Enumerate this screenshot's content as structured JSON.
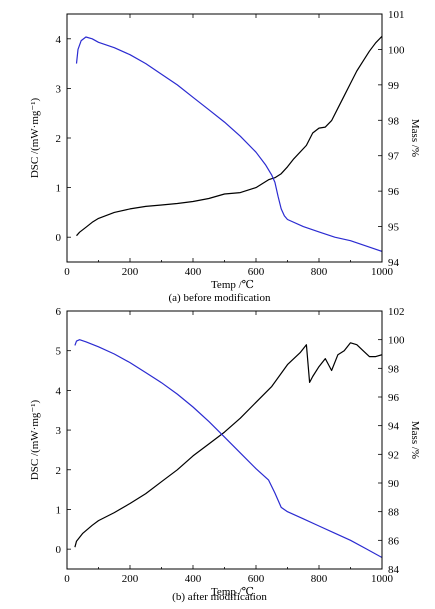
{
  "chart_data": [
    {
      "type": "line",
      "caption": "(a) before modification",
      "xlabel": "Temp /℃",
      "ylabel_left": "DSC /(mW·mg⁻¹)",
      "ylabel_right": "Mass /%",
      "xlim": [
        0,
        1000
      ],
      "ylim_left": [
        -0.5,
        4.5
      ],
      "ylim_right": [
        94,
        101
      ],
      "xticks": [
        "0",
        "200",
        "400",
        "600",
        "800",
        "1000"
      ],
      "yticks_left": [
        "0",
        "1",
        "2",
        "3",
        "4"
      ],
      "yticks_right": [
        "94",
        "95",
        "96",
        "97",
        "98",
        "99",
        "100",
        "101"
      ],
      "grid": false,
      "series": [
        {
          "axis": "left",
          "color": "#000000",
          "x": [
            30,
            40,
            60,
            80,
            100,
            150,
            200,
            250,
            300,
            350,
            400,
            450,
            500,
            550,
            600,
            640,
            660,
            680,
            700,
            720,
            760,
            780,
            800,
            820,
            840,
            860,
            880,
            900,
            920,
            940,
            960,
            980,
            1000
          ],
          "y": [
            0.03,
            0.1,
            0.2,
            0.3,
            0.38,
            0.5,
            0.57,
            0.62,
            0.65,
            0.68,
            0.72,
            0.78,
            0.87,
            0.9,
            1.0,
            1.16,
            1.2,
            1.28,
            1.42,
            1.58,
            1.85,
            2.1,
            2.2,
            2.22,
            2.35,
            2.6,
            2.85,
            3.1,
            3.35,
            3.55,
            3.75,
            3.92,
            4.05
          ]
        },
        {
          "axis": "right",
          "color": "#2b2bd1",
          "x": [
            30,
            35,
            45,
            60,
            80,
            100,
            150,
            200,
            250,
            300,
            350,
            400,
            450,
            500,
            550,
            600,
            630,
            650,
            660,
            670,
            680,
            690,
            700,
            750,
            800,
            850,
            900,
            950,
            1000
          ],
          "y": [
            99.6,
            100.0,
            100.25,
            100.35,
            100.3,
            100.2,
            100.05,
            99.85,
            99.6,
            99.3,
            99.0,
            98.65,
            98.3,
            97.95,
            97.55,
            97.1,
            96.75,
            96.45,
            96.25,
            95.85,
            95.5,
            95.3,
            95.2,
            95.0,
            94.85,
            94.7,
            94.6,
            94.45,
            94.3
          ]
        }
      ]
    },
    {
      "type": "line",
      "caption": "(b) after modification",
      "xlabel": "Temp /℃",
      "ylabel_left": "DSC /(mW·mg⁻¹)",
      "ylabel_right": "Mass /%",
      "xlim": [
        0,
        1000
      ],
      "ylim_left": [
        -0.5,
        6
      ],
      "ylim_right": [
        84,
        102
      ],
      "xticks": [
        "0",
        "200",
        "400",
        "600",
        "800",
        "1000"
      ],
      "yticks_left": [
        "0",
        "1",
        "2",
        "3",
        "4",
        "5",
        "6"
      ],
      "yticks_right": [
        "84",
        "86",
        "88",
        "90",
        "92",
        "94",
        "96",
        "98",
        "100",
        "102"
      ],
      "grid": false,
      "series": [
        {
          "axis": "left",
          "color": "#000000",
          "x": [
            25,
            30,
            50,
            80,
            100,
            150,
            200,
            250,
            300,
            350,
            400,
            450,
            500,
            550,
            600,
            650,
            700,
            740,
            760,
            770,
            780,
            800,
            820,
            840,
            860,
            880,
            900,
            920,
            940,
            960,
            980,
            1000
          ],
          "y": [
            0.05,
            0.2,
            0.4,
            0.6,
            0.72,
            0.92,
            1.15,
            1.4,
            1.7,
            2.0,
            2.35,
            2.65,
            2.95,
            3.3,
            3.7,
            4.1,
            4.65,
            4.95,
            5.15,
            4.2,
            4.35,
            4.6,
            4.8,
            4.5,
            4.9,
            5.0,
            5.2,
            5.15,
            5.0,
            4.85,
            4.85,
            4.9
          ]
        },
        {
          "axis": "right",
          "color": "#2b2bd1",
          "x": [
            25,
            30,
            40,
            60,
            100,
            150,
            200,
            250,
            300,
            350,
            400,
            450,
            500,
            550,
            600,
            640,
            660,
            680,
            700,
            750,
            800,
            850,
            900,
            950,
            1000
          ],
          "y": [
            99.6,
            99.9,
            100.0,
            99.85,
            99.5,
            99.0,
            98.4,
            97.7,
            97.0,
            96.2,
            95.3,
            94.3,
            93.2,
            92.1,
            91.0,
            90.2,
            89.3,
            88.3,
            88.0,
            87.5,
            87.0,
            86.5,
            86.0,
            85.4,
            84.8
          ]
        }
      ]
    }
  ]
}
